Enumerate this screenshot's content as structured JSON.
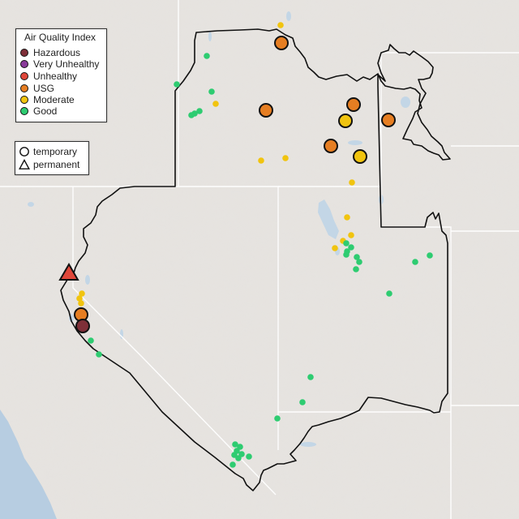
{
  "legend": {
    "title": "Air Quality Index",
    "categories": [
      {
        "key": "hazardous",
        "label": "Hazardous",
        "color": "#7e2f38"
      },
      {
        "key": "very_unhealthy",
        "label": "Very Unhealthy",
        "color": "#8a3b9a"
      },
      {
        "key": "unhealthy",
        "label": "Unhealthy",
        "color": "#e0473a"
      },
      {
        "key": "usg",
        "label": "USG",
        "color": "#e67e22"
      },
      {
        "key": "moderate",
        "label": "Moderate",
        "color": "#f1c40f"
      },
      {
        "key": "good",
        "label": "Good",
        "color": "#2ecc71"
      }
    ],
    "monitor_types": [
      {
        "key": "temporary",
        "label": "temporary",
        "icon": "circle-icon"
      },
      {
        "key": "permanent",
        "label": "permanent",
        "icon": "triangle-icon"
      }
    ]
  },
  "colors": {
    "land": "#e6e3df",
    "water": "#b7cde1",
    "lakes": "#c3d6e6",
    "state_lines": "#ffffff",
    "region_border": "#111111"
  }
}
